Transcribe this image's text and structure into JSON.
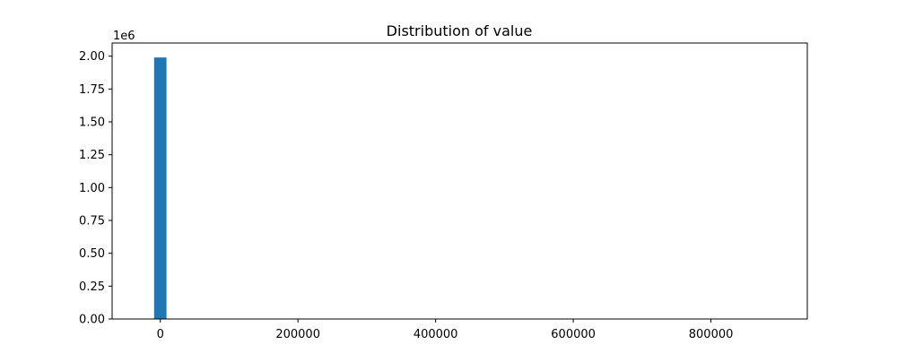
{
  "chart_data": {
    "type": "bar",
    "title": "Distribution of value",
    "xlabel": "",
    "ylabel": "",
    "x_ticks": [
      0,
      200000,
      400000,
      600000,
      800000
    ],
    "x_tick_labels": [
      "0",
      "200000",
      "400000",
      "600000",
      "800000"
    ],
    "y_ticks": [
      0,
      250000,
      500000,
      750000,
      1000000,
      1250000,
      1500000,
      1750000,
      2000000
    ],
    "y_tick_labels": [
      "0.00",
      "0.25",
      "0.50",
      "0.75",
      "1.00",
      "1.25",
      "1.50",
      "1.75",
      "2.00"
    ],
    "y_offset_label": "1e6",
    "xlim": [
      -70000,
      940000
    ],
    "ylim": [
      0,
      2100000
    ],
    "grid": false,
    "bins": [
      {
        "x0": -9000,
        "x1": 9000,
        "value": 1990000
      }
    ],
    "bar_color": "#1f77b4"
  }
}
